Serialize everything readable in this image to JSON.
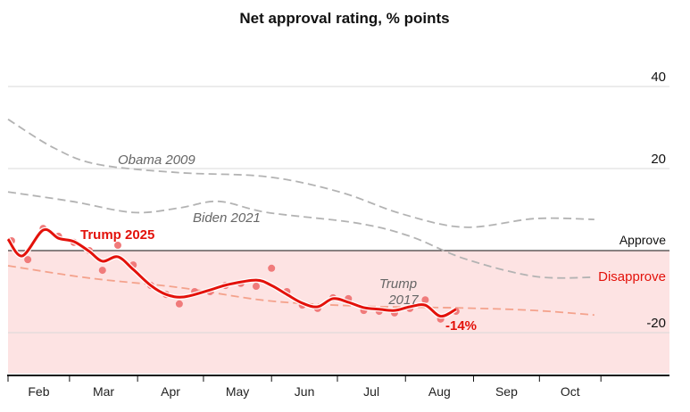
{
  "chart_data": {
    "type": "line",
    "title": "Net approval rating, % points",
    "xlabel": "",
    "ylabel": "",
    "x_units": "days since start of February",
    "xlim": [
      0,
      301
    ],
    "ylim": [
      -30,
      40
    ],
    "y_ticks": [
      40,
      20,
      -20
    ],
    "y_tick_labels": [
      "40",
      "20",
      "-20"
    ],
    "grid": true,
    "zones": {
      "approve_label": "Approve",
      "disapprove_label": "Disapprove"
    },
    "months": [
      {
        "label": "Feb",
        "start": 0,
        "end": 28
      },
      {
        "label": "Mar",
        "start": 28,
        "end": 59
      },
      {
        "label": "Apr",
        "start": 59,
        "end": 89
      },
      {
        "label": "May",
        "start": 89,
        "end": 120
      },
      {
        "label": "Jun",
        "start": 120,
        "end": 150
      },
      {
        "label": "Jul",
        "start": 150,
        "end": 181
      },
      {
        "label": "Aug",
        "start": 181,
        "end": 212
      },
      {
        "label": "Sep",
        "start": 212,
        "end": 242
      },
      {
        "label": "Oct",
        "start": 242,
        "end": 270
      }
    ],
    "series": [
      {
        "name": "Obama 2009",
        "style": "dashed",
        "color": "#b3b3b3",
        "x": [
          0,
          21,
          41,
          78,
          118,
          151,
          179,
          208,
          240,
          267
        ],
        "y": [
          32,
          25,
          21,
          19,
          18,
          14.3,
          9,
          5.7,
          7.8,
          7.6
        ]
      },
      {
        "name": "Biden 2021",
        "style": "dashed",
        "color": "#b3b3b3",
        "x": [
          0,
          29,
          57,
          78,
          96,
          118,
          159,
          183,
          208,
          240,
          267
        ],
        "y": [
          14.3,
          12,
          9.3,
          10.4,
          12,
          9.3,
          6.7,
          3.5,
          -2,
          -6.3,
          -6.5
        ]
      },
      {
        "name": "Trump 2017",
        "style": "dashed",
        "color": "#f4a28c",
        "x": [
          0,
          37,
          78,
          118,
          159,
          208,
          240,
          267
        ],
        "y": [
          -3.7,
          -6.7,
          -9,
          -12.2,
          -13.5,
          -14,
          -14.6,
          -15.7
        ]
      },
      {
        "name": "Trump 2025",
        "style": "solid",
        "color": "#e3120b",
        "x": [
          0,
          6.5,
          16,
          23,
          30,
          37,
          43,
          50,
          57,
          65,
          72,
          80,
          92,
          100,
          113,
          120,
          127,
          134,
          141,
          148,
          155,
          162,
          169,
          176,
          183,
          190,
          197,
          204
        ],
        "y": [
          2.8,
          -1.3,
          5,
          3,
          2.2,
          -0.2,
          -2.6,
          -1.5,
          -4.6,
          -8.5,
          -10.7,
          -11.3,
          -9.6,
          -8.3,
          -7.2,
          -8.5,
          -10.7,
          -12.8,
          -13.7,
          -11.7,
          -12.6,
          -13.9,
          -14.3,
          -14.6,
          -13.7,
          -13.3,
          -16,
          -14.3
        ]
      }
    ],
    "points": {
      "name": "Trump 2025 polls",
      "color": "#f07b7b",
      "x": [
        1.6,
        9,
        16,
        23,
        30,
        37,
        43,
        50,
        57,
        65,
        72,
        78,
        85,
        92,
        99,
        106,
        113,
        120,
        127,
        134,
        141,
        148,
        155,
        162,
        169,
        176,
        183,
        190,
        197,
        204
      ],
      "y": [
        2.4,
        -2.2,
        5.4,
        3.5,
        2,
        0,
        -4.8,
        1.3,
        -3.5,
        -8.5,
        -10.7,
        -13,
        -10,
        -10,
        -8.5,
        -8,
        -8.7,
        -4.3,
        -10,
        -13.3,
        -14.1,
        -11.5,
        -11.7,
        -14.6,
        -14.8,
        -15.2,
        -14.1,
        -12,
        -16.7,
        -14.8
      ]
    },
    "annotations": {
      "obama": "Obama 2009",
      "biden": "Biden 2021",
      "trump2025": "Trump 2025",
      "trump2017_line1": "Trump",
      "trump2017_line2": "2017",
      "latest": "-14%"
    },
    "colors": {
      "disapprove_band": "#fde3e3",
      "trump": "#e3120b",
      "grid": "#d9d9d9"
    }
  }
}
